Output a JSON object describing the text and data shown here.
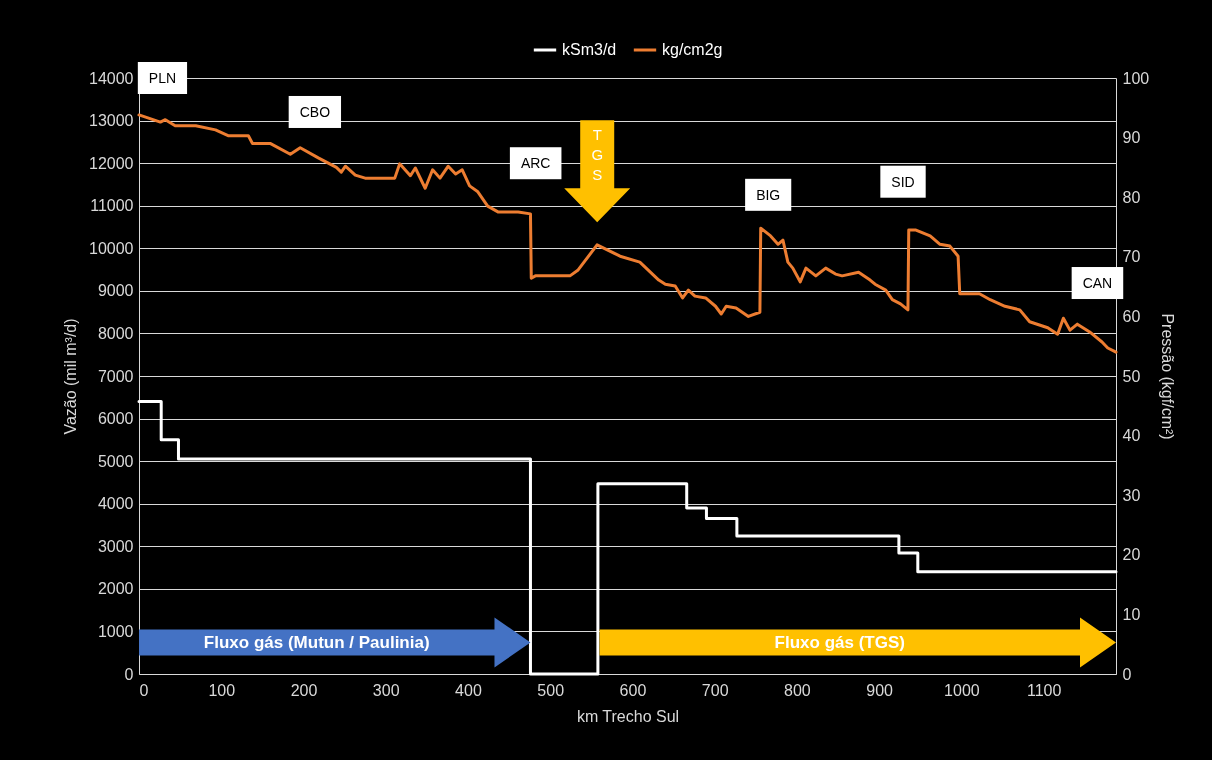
{
  "chart_data": {
    "type": "line",
    "xlabel": "km Trecho Sul",
    "ylabel": "Vazão (mil m³/d)",
    "y2label": "Pressão (kgf/cm²)",
    "xlim": [
      0,
      1188
    ],
    "xticks": [
      0,
      100,
      200,
      300,
      400,
      500,
      600,
      700,
      800,
      900,
      1000,
      1100
    ],
    "ylim": [
      0,
      14000
    ],
    "yticks": [
      0,
      1000,
      2000,
      3000,
      4000,
      5000,
      6000,
      7000,
      8000,
      9000,
      10000,
      11000,
      12000,
      13000,
      14000
    ],
    "y2lim": [
      0,
      100
    ],
    "y2ticks": [
      0,
      10,
      20,
      30,
      40,
      50,
      60,
      70,
      80,
      90,
      100
    ],
    "grid": "y",
    "legend": "top",
    "series": [
      {
        "name": "kSm3/d",
        "type": "step",
        "color": "#ffffff",
        "x": [
          0,
          27,
          48,
          476,
          558,
          666,
          690,
          727,
          924,
          947,
          1188
        ],
        "values": [
          6400,
          5500,
          5050,
          0,
          4470,
          3900,
          3650,
          3240,
          2840,
          2400,
          2400
        ]
      },
      {
        "name": "kg/cm2g",
        "type": "line",
        "axis": "y2",
        "color": "#ed7d31",
        "x": [
          0,
          26,
          32,
          44,
          69,
          93,
          109,
          133,
          138,
          160,
          184,
          196,
          218,
          240,
          246,
          251,
          263,
          275,
          311,
          317,
          330,
          336,
          348,
          357,
          366,
          376,
          385,
          393,
          402,
          412,
          424,
          437,
          445,
          461,
          476,
          477,
          482,
          524,
          534,
          557,
          585,
          609,
          632,
          640,
          652,
          661,
          668,
          676,
          689,
          701,
          708,
          714,
          726,
          741,
          755,
          756,
          768,
          777,
          783,
          789,
          795,
          804,
          811,
          823,
          835,
          847,
          855,
          875,
          889,
          895,
          908,
          916,
          926,
          935,
          936,
          944,
          962,
          974,
          986,
          996,
          998,
          1022,
          1035,
          1053,
          1071,
          1083,
          1105,
          1117,
          1124,
          1132,
          1141,
          1156,
          1171,
          1178,
          1188
        ],
        "values": [
          93.8,
          92.6,
          93,
          92,
          92,
          91.3,
          90.3,
          90.3,
          89,
          89,
          87.2,
          88.3,
          86.6,
          85,
          84.2,
          85.2,
          83.7,
          83.2,
          83.2,
          85.6,
          83.6,
          84.9,
          81.5,
          84.6,
          83.2,
          85.2,
          83.9,
          84.6,
          81.9,
          80.9,
          78.5,
          77.5,
          77.5,
          77.5,
          77.2,
          66.4,
          66.8,
          66.8,
          67.8,
          72,
          70.1,
          69.1,
          66.1,
          65.4,
          65.1,
          63.1,
          64.4,
          63.4,
          63.1,
          61.7,
          60.4,
          61.7,
          61.4,
          60,
          60.7,
          74.8,
          73.5,
          72.1,
          72.8,
          69.1,
          68.1,
          65.8,
          68.1,
          66.8,
          68.1,
          67.1,
          66.8,
          67.4,
          66.1,
          65.4,
          64.4,
          62.8,
          62.1,
          61.1,
          74.5,
          74.5,
          73.5,
          72.1,
          71.8,
          70.1,
          63.8,
          63.8,
          62.8,
          61.7,
          61.1,
          59.1,
          58.1,
          57,
          59.7,
          57.7,
          58.7,
          57.4,
          55.7,
          54.7,
          54
        ]
      }
    ],
    "annotations": [
      "PLN",
      "CBO",
      "ARC",
      "BIG",
      "SID",
      "CAN",
      "TGS",
      "Fluxo gás (Mutun / Paulinia)",
      "Fluxo gás (TGS)"
    ]
  }
}
